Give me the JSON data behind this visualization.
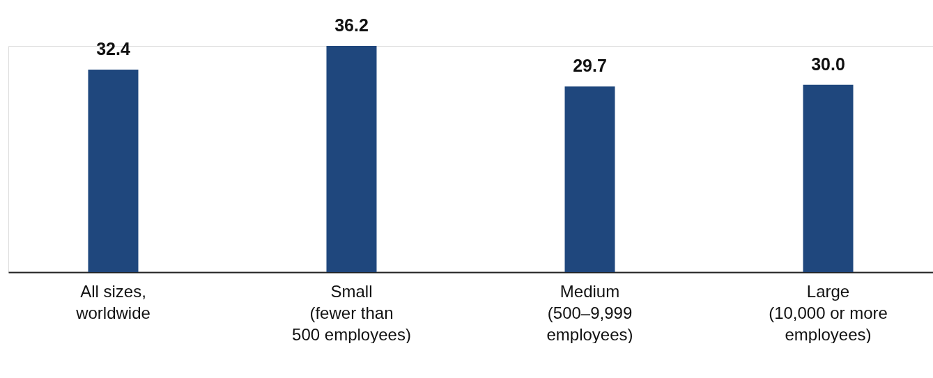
{
  "chart_data": {
    "type": "bar",
    "categories": [
      "All sizes,\nworldwide",
      "Small\n(fewer than\n500 employees)",
      "Medium\n(500–9,999\nemployees)",
      "Large\n(10,000 or more\nemployees)"
    ],
    "values": [
      32.4,
      36.2,
      29.7,
      30.0
    ],
    "value_labels": [
      "32.4",
      "36.2",
      "29.7",
      "30.0"
    ],
    "color": "#1f477d",
    "grid": false
  }
}
